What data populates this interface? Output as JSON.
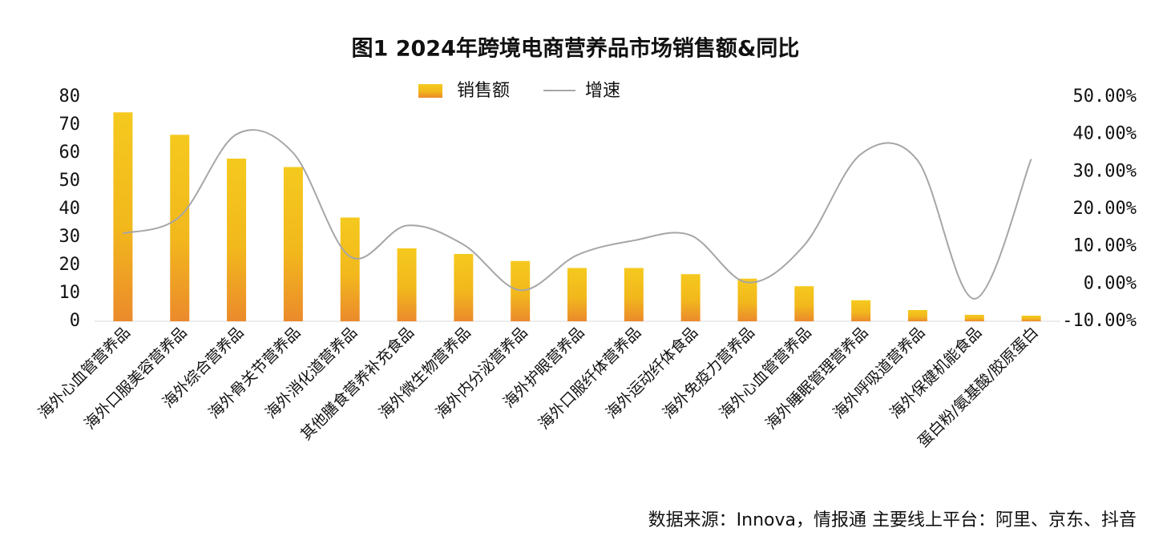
{
  "chart_data": {
    "type": "bar",
    "title": "图1 2024年跨境电商营养品市场销售额&同比",
    "categories": [
      "海外心血管营养品",
      "海外口服美容营养品",
      "海外综合营养品",
      "海外骨关节营养品",
      "海外消化道营养品",
      "其他膳食营养补充食品",
      "海外微生物营养品",
      "海外内分泌营养品",
      "海外护眼营养品",
      "海外口服纤体营养品",
      "海外运动纤体食品",
      "海外免疫力营养品",
      "海外心血管营养品",
      "海外睡眠管理营养品",
      "海外呼吸道营养品",
      "海外保健机能食品",
      "蛋白粉/氨基酸/胶原蛋白"
    ],
    "series": [
      {
        "name": "销售额",
        "type": "bar",
        "color": "#f2b81c",
        "values": [
          74.5,
          66.5,
          58,
          55,
          37,
          26,
          24,
          21.5,
          19,
          19,
          16.8,
          15.2,
          12.5,
          7.5,
          4,
          2.3,
          2
        ]
      },
      {
        "name": "增速",
        "type": "line",
        "axis": "y2",
        "color": "#a6a6a6",
        "values": [
          13.5,
          18,
          40,
          35,
          7.3,
          15.6,
          10.5,
          -1.7,
          7.7,
          11.6,
          13,
          0.4,
          10.3,
          34.7,
          33,
          -4,
          33.4
        ]
      }
    ],
    "ylim": [
      0,
      80
    ],
    "yticks": [
      0,
      10,
      20,
      30,
      40,
      50,
      60,
      70,
      80
    ],
    "y2lim": [
      -10,
      50
    ],
    "y2ticks": [
      {
        "value": -10,
        "label": "-10.00%"
      },
      {
        "value": 0,
        "label": "0.00%"
      },
      {
        "value": 10,
        "label": "10.00%"
      },
      {
        "value": 20,
        "label": "20.00%"
      },
      {
        "value": 30,
        "label": "30.00%"
      },
      {
        "value": 40,
        "label": "40.00%"
      },
      {
        "value": 50,
        "label": "50.00%"
      }
    ],
    "grid": false,
    "legend": "top",
    "source": "数据来源：Innova，情报通 主要线上平台：阿里、京东、抖音"
  }
}
